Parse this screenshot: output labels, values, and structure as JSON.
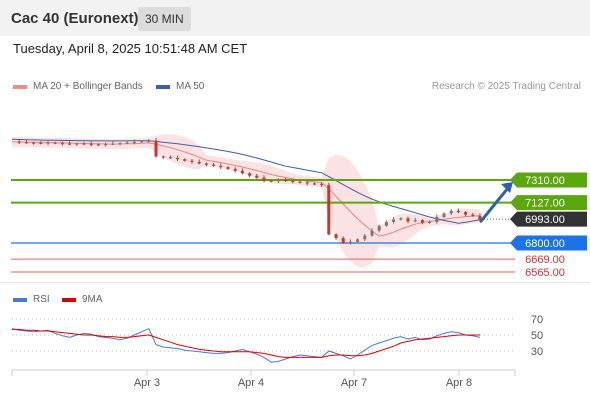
{
  "header": {
    "title": "Cac 40 (Euronext)",
    "period": "30 MIN",
    "datetime": "Tuesday, April 8, 2025 10:51:48 AM CET"
  },
  "copyright": "Research © 2025 Trading Central",
  "legend": {
    "bollinger": "MA 20 + Bollinger Bands",
    "ma50": "MA 50",
    "rsi": "RSI",
    "ma9": "9MA"
  },
  "colors": {
    "green_level": "#5aa70e",
    "blue_level": "#1a73e8",
    "red_level": "#e06060",
    "current": "#333333",
    "bollinger_band": "#fbd9d9",
    "ma20": "#f08080",
    "ma50": "#3a5ea8",
    "arrow": "#2f5fb0",
    "candle_up": "#777777",
    "candle_down": "#c0392b",
    "rsi": "#4a7ad0",
    "rsi_ma9": "#e00000"
  },
  "chart_data": [
    {
      "type": "candlestick",
      "title": "Cac 40 (Euronext)",
      "timeframe": "30 MIN",
      "x_ticks": [
        "Apr 3",
        "Apr 4",
        "Apr 7",
        "Apr 8"
      ],
      "ylim": [
        6500,
        7500
      ],
      "levels": [
        {
          "value": 7310.0,
          "label": "7310.00",
          "kind": "resistance"
        },
        {
          "value": 7127.0,
          "label": "7127.00",
          "kind": "resistance"
        },
        {
          "value": 6993.0,
          "label": "6993.00",
          "kind": "current"
        },
        {
          "value": 6800.0,
          "label": "6800.00",
          "kind": "pivot"
        },
        {
          "value": 6669.0,
          "label": "6669.00",
          "kind": "support"
        },
        {
          "value": 6565.0,
          "label": "6565.00",
          "kind": "support"
        }
      ],
      "close_series": [
        7620,
        7615,
        7612,
        7610,
        7606,
        7612,
        7608,
        7604,
        7600,
        7605,
        7602,
        7598,
        7595,
        7600,
        7604,
        7608,
        7612,
        7618,
        7624,
        7628,
        7500,
        7494,
        7488,
        7478,
        7466,
        7456,
        7444,
        7434,
        7424,
        7414,
        7400,
        7384,
        7364,
        7345,
        7328,
        7304,
        7300,
        7310,
        7302,
        7296,
        7290,
        7282,
        7276,
        7268,
        6870,
        6840,
        6800,
        6810,
        6830,
        6860,
        6900,
        6940,
        6970,
        6990,
        7000,
        6975,
        6985,
        6965,
        6970,
        7010,
        7040,
        7060,
        7050,
        7030,
        7020,
        6993
      ],
      "series": [
        {
          "name": "MA 20 + Bollinger Bands"
        },
        {
          "name": "MA 50"
        }
      ],
      "forecast_arrow": {
        "from": 6993,
        "to": 7310
      }
    },
    {
      "type": "line",
      "series": [
        {
          "name": "RSI"
        },
        {
          "name": "9MA"
        }
      ],
      "y_ticks": [
        70,
        50,
        30
      ],
      "ylim": [
        0,
        100
      ],
      "rsi": [
        58,
        56,
        55,
        54,
        55,
        56,
        52,
        49,
        47,
        50,
        52,
        51,
        48,
        47,
        46,
        44,
        46,
        50,
        54,
        58,
        38,
        35,
        34,
        33,
        31,
        30,
        29,
        28,
        27,
        27,
        28,
        30,
        32,
        29,
        26,
        22,
        16,
        17,
        20,
        23,
        25,
        24,
        23,
        22,
        30,
        27,
        24,
        20,
        25,
        31,
        37,
        40,
        43,
        46,
        48,
        45,
        47,
        44,
        45,
        49,
        52,
        54,
        53,
        50,
        49,
        47
      ],
      "ma9": [
        57,
        57,
        56,
        56,
        55,
        55,
        54,
        53,
        52,
        51,
        50,
        50,
        49,
        48,
        48,
        47,
        47,
        48,
        49,
        50,
        47,
        44,
        41,
        38,
        36,
        34,
        32,
        31,
        30,
        29,
        29,
        29,
        29,
        29,
        28,
        27,
        25,
        23,
        22,
        22,
        22,
        22,
        22,
        22,
        24,
        25,
        25,
        24,
        24,
        25,
        27,
        30,
        33,
        36,
        40,
        42,
        44,
        45,
        46,
        47,
        48,
        49,
        50,
        50,
        50,
        50
      ]
    }
  ]
}
